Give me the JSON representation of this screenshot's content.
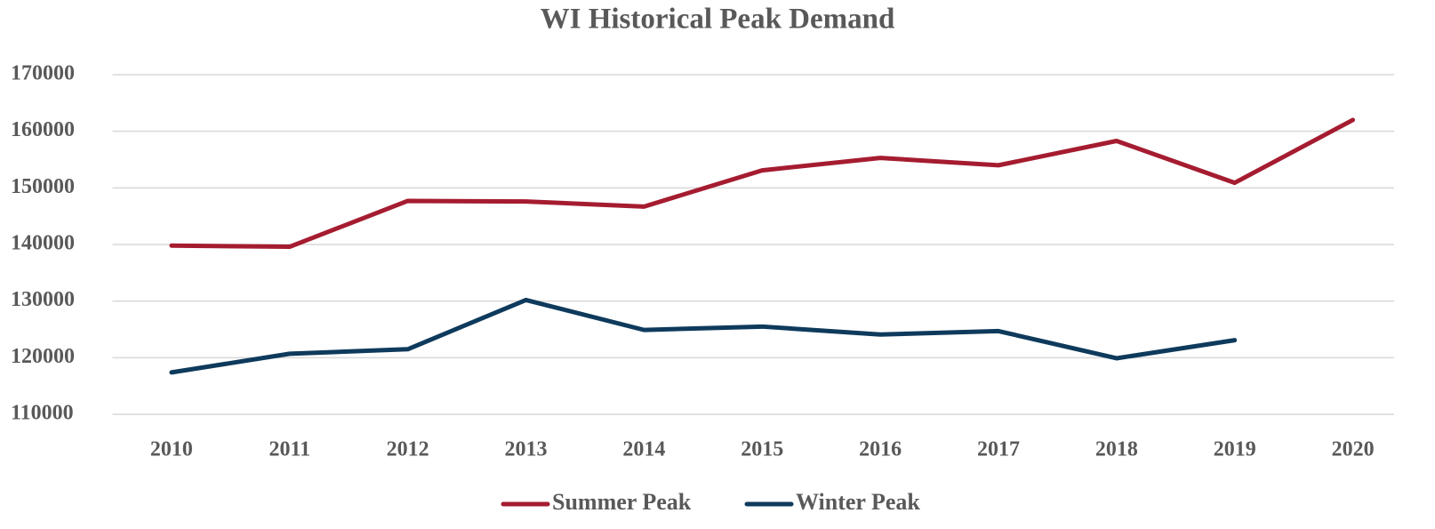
{
  "chart_data": {
    "type": "line",
    "title": "WI Historical Peak Demand",
    "categories": [
      "2010",
      "2011",
      "2012",
      "2013",
      "2014",
      "2015",
      "2016",
      "2017",
      "2018",
      "2019",
      "2020"
    ],
    "series": [
      {
        "name": "Summer Peak",
        "color": "#a51c30",
        "values": [
          139800,
          139600,
          147700,
          147600,
          146700,
          153100,
          155300,
          154000,
          158300,
          150900,
          162000
        ]
      },
      {
        "name": "Winter Peak",
        "color": "#0e3a5c",
        "values": [
          117400,
          120700,
          121500,
          130200,
          124900,
          125500,
          124100,
          124700,
          119900,
          123100,
          null
        ]
      }
    ],
    "ylim": [
      110000,
      170000
    ],
    "yticks": [
      110000,
      120000,
      130000,
      140000,
      150000,
      160000,
      170000
    ],
    "grid": true,
    "legend": "bottom"
  }
}
